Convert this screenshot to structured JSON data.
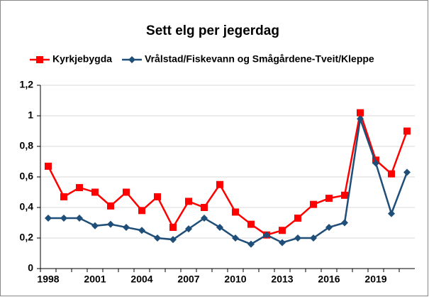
{
  "chart_data": {
    "type": "line",
    "title": "Sett elg per jegerdag",
    "categories": [
      "1998",
      null,
      null,
      "2001",
      null,
      null,
      "2004",
      null,
      null,
      "2007",
      null,
      null,
      "2010",
      null,
      null,
      "2013",
      null,
      null,
      "2016",
      null,
      null,
      "2019",
      null,
      null
    ],
    "series": [
      {
        "name": "Kyrkjebygda",
        "color": "#ff0000",
        "marker": "square",
        "values": [
          0.67,
          0.47,
          0.53,
          0.5,
          0.41,
          0.5,
          0.38,
          0.47,
          0.27,
          0.44,
          0.4,
          0.55,
          0.37,
          0.29,
          0.22,
          0.25,
          0.33,
          0.42,
          0.46,
          0.48,
          1.02,
          0.71,
          0.62,
          0.9
        ]
      },
      {
        "name": "Vrålstad/Fiskevann og Smågårdene-Tveit/Kleppe",
        "color": "#1f4e79",
        "marker": "diamond",
        "values": [
          0.33,
          0.33,
          0.33,
          0.28,
          0.29,
          0.27,
          0.25,
          0.2,
          0.19,
          0.26,
          0.33,
          0.27,
          0.2,
          0.16,
          0.22,
          0.17,
          0.2,
          0.2,
          0.27,
          0.3,
          0.98,
          0.69,
          0.36,
          0.63
        ]
      }
    ],
    "ylim": [
      0,
      1.2
    ],
    "yticks": [
      0,
      {
        "value": 0.2,
        "label": "0,2"
      },
      {
        "value": 0.4,
        "label": "0,4"
      },
      {
        "value": 0.6,
        "label": "0,6"
      },
      {
        "value": 0.8,
        "label": "0,8"
      },
      1,
      {
        "value": 1.2,
        "label": "1,2"
      }
    ],
    "grid": true,
    "legend": "top"
  }
}
